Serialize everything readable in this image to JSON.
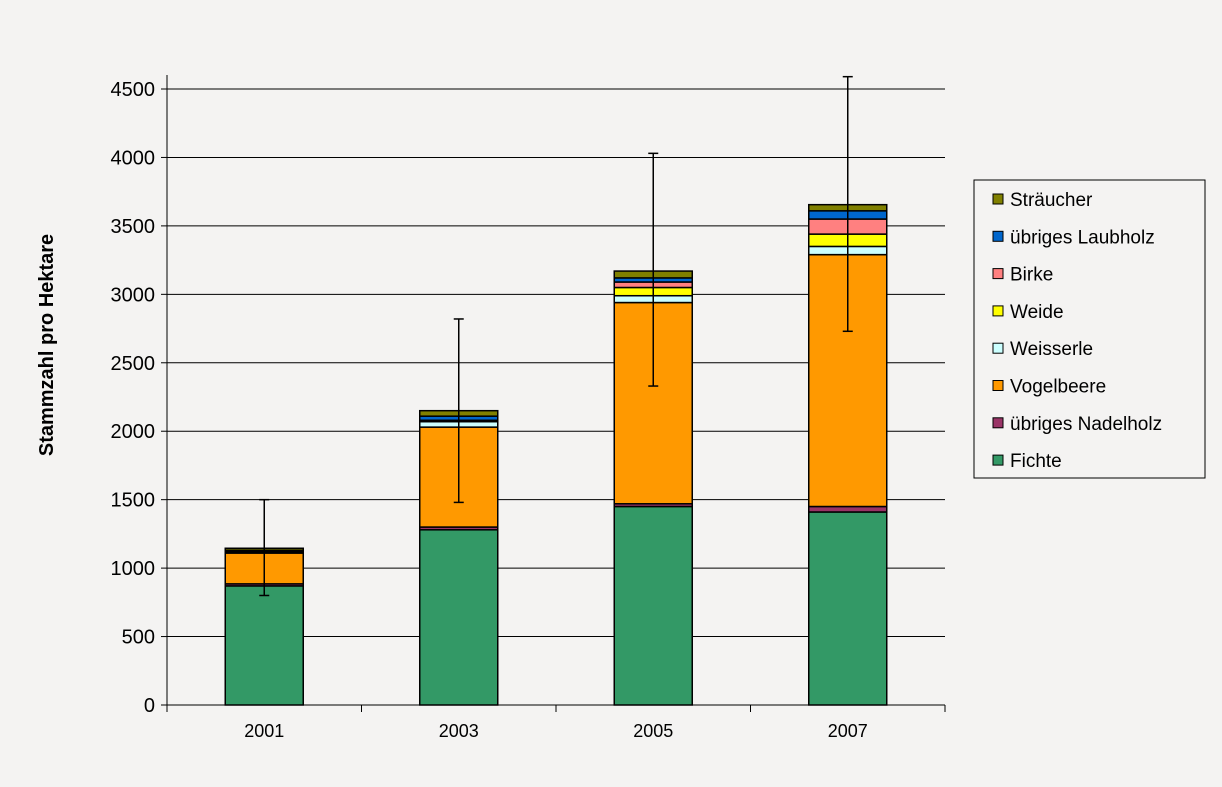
{
  "chart_data": {
    "type": "bar",
    "stacked": true,
    "title": "",
    "xlabel": "",
    "ylabel": "Stammzahl pro Hektare",
    "categories": [
      "2001",
      "2003",
      "2005",
      "2007"
    ],
    "ylim": [
      0,
      4500
    ],
    "yticks": [
      0,
      500,
      1000,
      1500,
      2000,
      2500,
      3000,
      3500,
      4000,
      4500
    ],
    "grid": true,
    "legend_position": "right",
    "series": [
      {
        "name": "Fichte",
        "color": "#339966",
        "values": [
          870,
          1280,
          1450,
          1410
        ]
      },
      {
        "name": "übriges Nadelholz",
        "color": "#993366",
        "values": [
          15,
          20,
          20,
          40
        ]
      },
      {
        "name": "Vogelbeere",
        "color": "#ff9900",
        "values": [
          225,
          730,
          1470,
          1840
        ]
      },
      {
        "name": "Weisserle",
        "color": "#ccffff",
        "values": [
          10,
          40,
          50,
          60
        ]
      },
      {
        "name": "Weide",
        "color": "#ffff00",
        "values": [
          0,
          0,
          60,
          90
        ]
      },
      {
        "name": "Birke",
        "color": "#ff8080",
        "values": [
          0,
          10,
          40,
          110
        ]
      },
      {
        "name": "übriges Laubholz",
        "color": "#0066cc",
        "values": [
          10,
          30,
          30,
          60
        ]
      },
      {
        "name": "Sträucher",
        "color": "#808000",
        "values": [
          15,
          40,
          50,
          45
        ]
      }
    ],
    "error_bars": [
      {
        "category": "2001",
        "low": 800,
        "high": 1500
      },
      {
        "category": "2003",
        "low": 1480,
        "high": 2820
      },
      {
        "category": "2005",
        "low": 2330,
        "high": 4030
      },
      {
        "category": "2007",
        "low": 2730,
        "high": 4590
      }
    ]
  }
}
